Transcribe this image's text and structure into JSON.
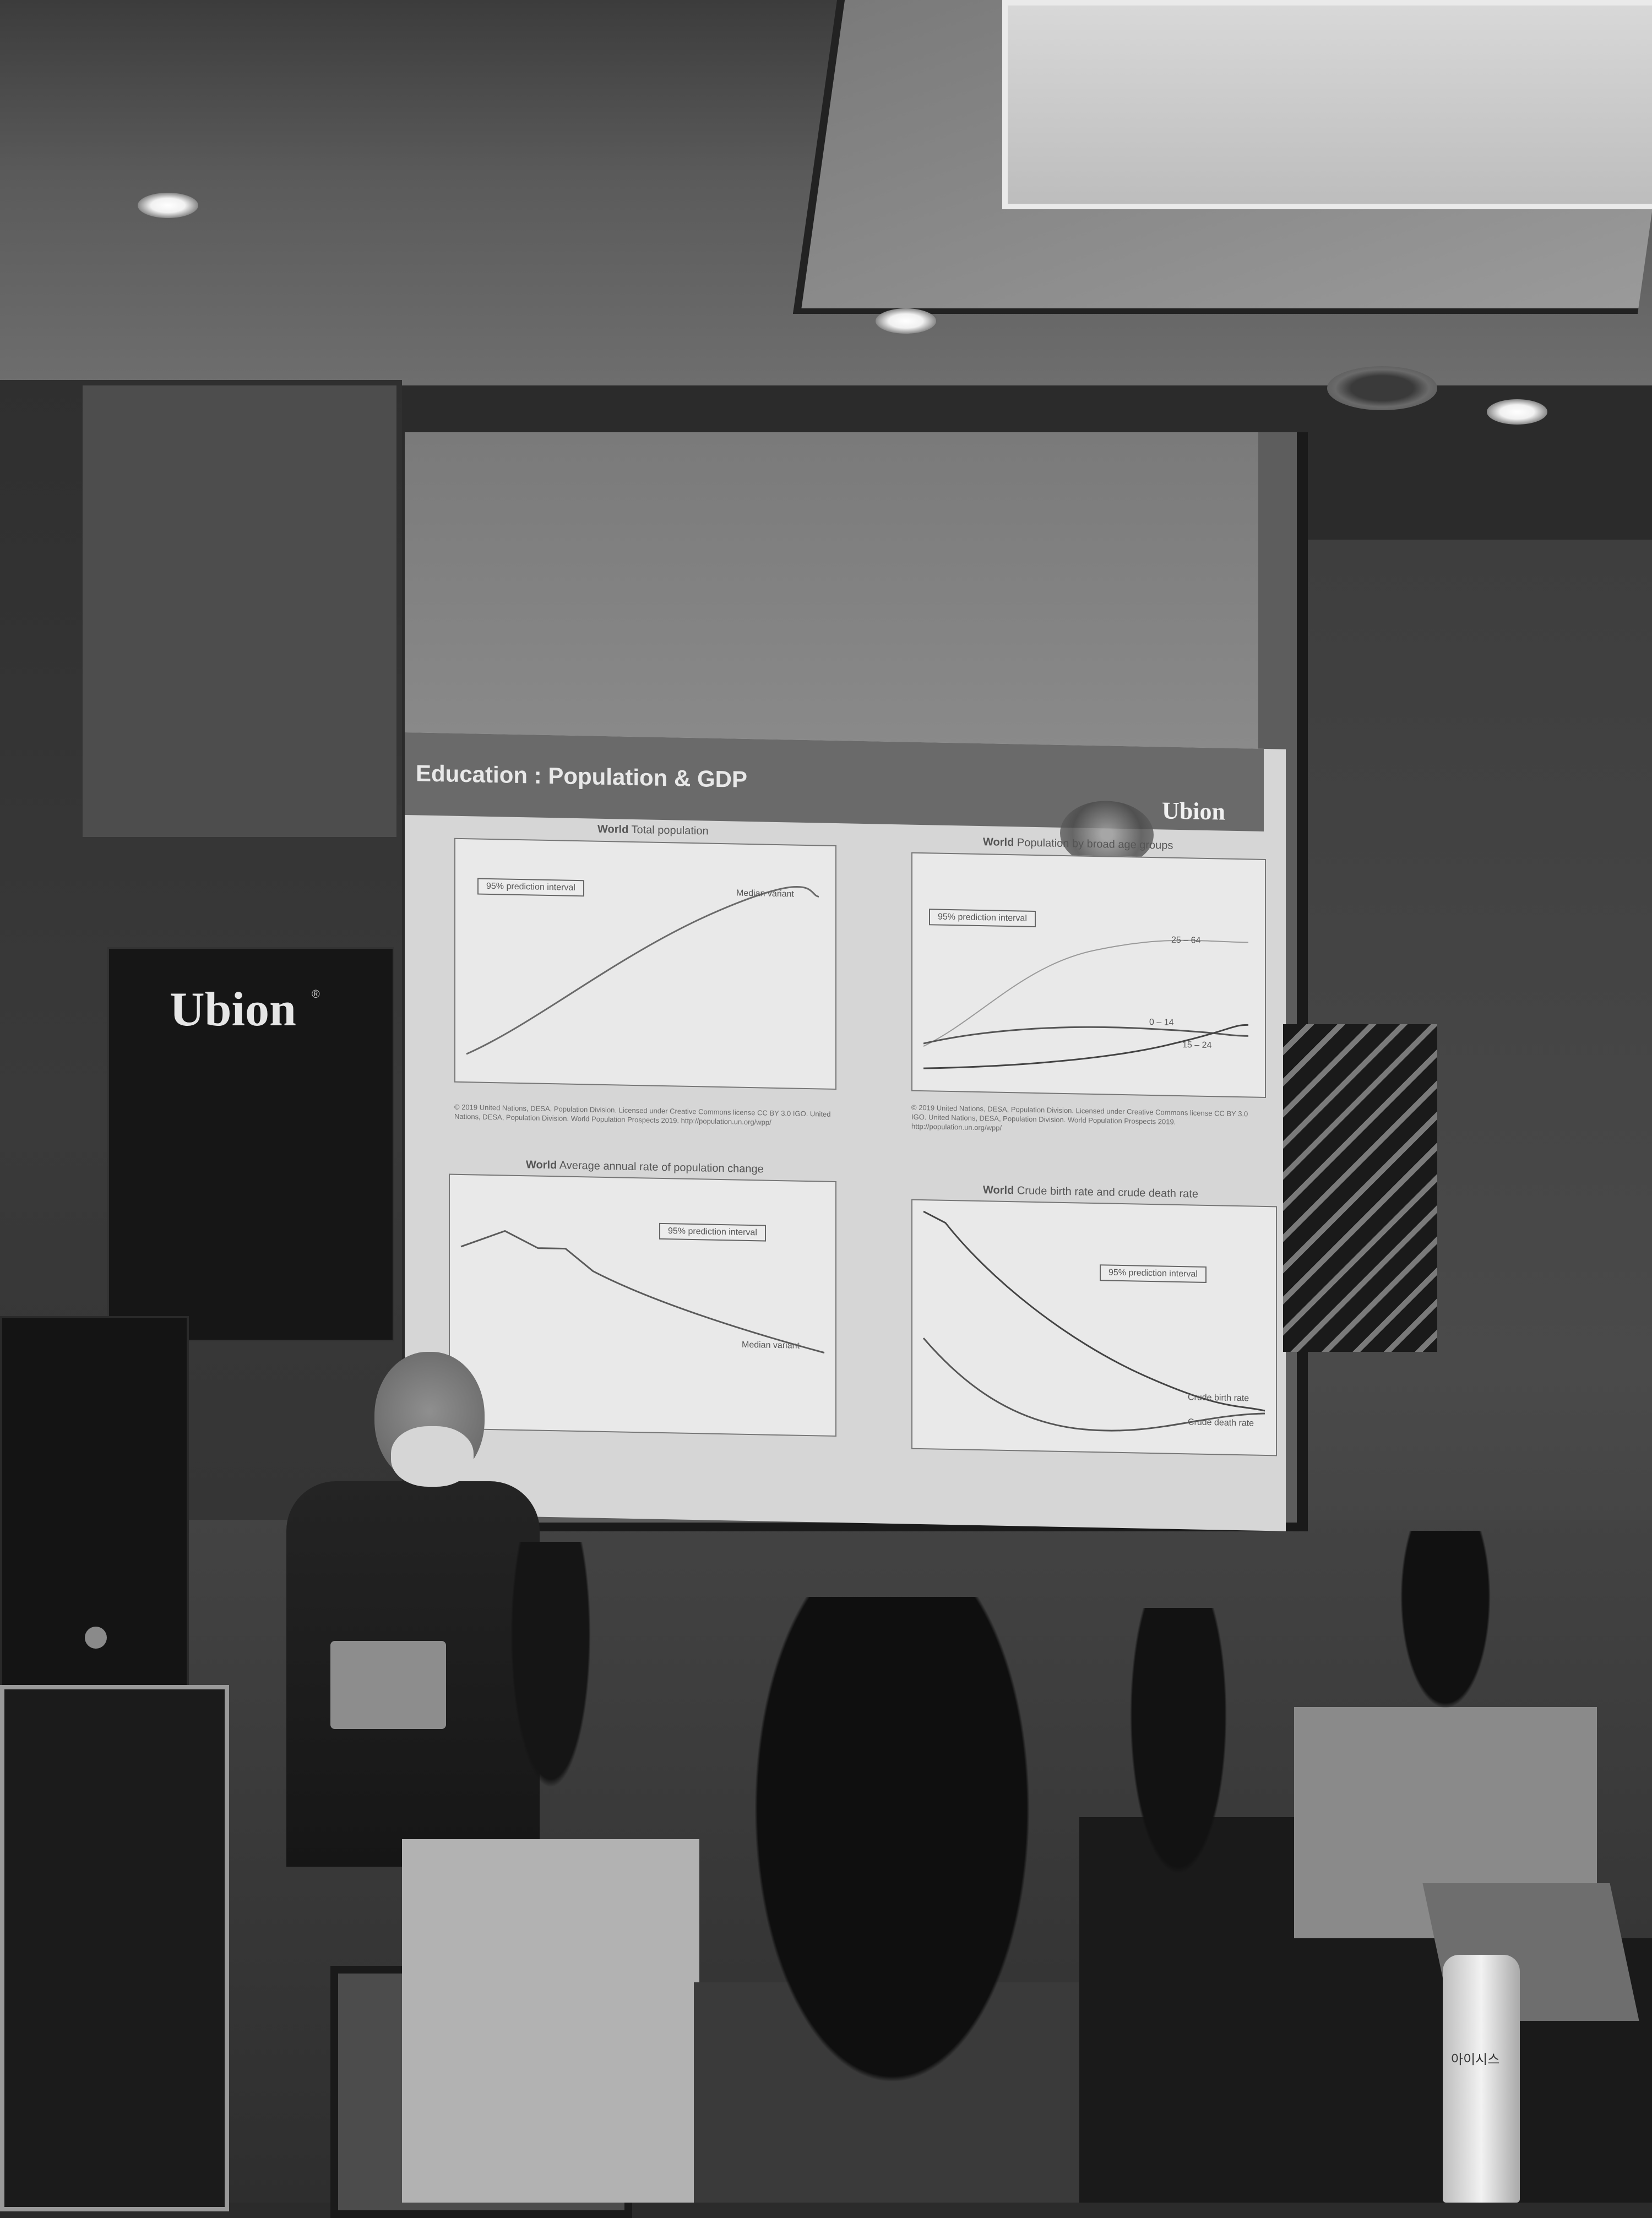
{
  "slide": {
    "title": "Education : Population & GDP",
    "logo": "Ubion",
    "panels": [
      {
        "title_bold": "World",
        "title": "Total population",
        "legend": "95% prediction interval",
        "series_label": "Median variant",
        "note": "© 2019 United Nations, DESA, Population Division. Licensed under Creative Commons license CC BY 3.0 IGO. United Nations, DESA, Population Division. World Population Prospects 2019. http://population.un.org/wpp/"
      },
      {
        "title_bold": "World",
        "title": "Population by broad age groups",
        "legend": "95% prediction interval",
        "series_labels": [
          "25 – 64",
          "0 – 14",
          "15 – 24"
        ],
        "note": "© 2019 United Nations, DESA, Population Division. Licensed under Creative Commons license CC BY 3.0 IGO. United Nations, DESA, Population Division. World Population Prospects 2019. http://population.un.org/wpp/"
      },
      {
        "title_bold": "World",
        "title": "Average annual rate of population change",
        "legend": "95% prediction interval",
        "series_label": "Median variant"
      },
      {
        "title_bold": "World",
        "title": "Crude birth rate and crude death rate",
        "legend": "95% prediction interval",
        "series_labels": [
          "Crude birth rate",
          "Crude death rate"
        ]
      }
    ]
  },
  "banner": {
    "logo": "Ubion",
    "mark": "®"
  },
  "bottle_label": "아이시스"
}
